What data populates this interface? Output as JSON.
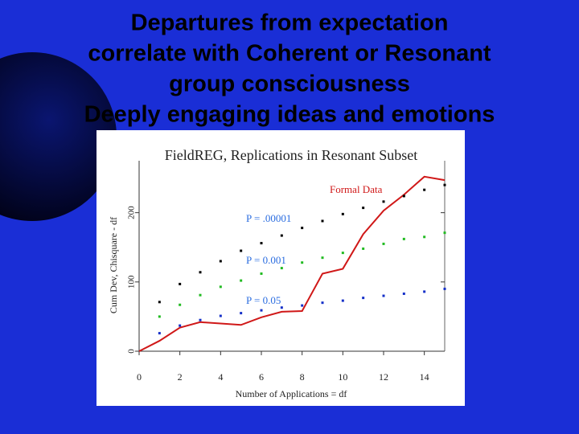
{
  "slide": {
    "title_lines": [
      "Departures from expectation",
      "correlate with Coherent or Resonant",
      "group consciousness",
      "Deeply engaging ideas and emotions"
    ]
  },
  "chart_data": {
    "type": "line",
    "title": "FieldREG, Replications in Resonant Subset",
    "x_label": "Number of Applications = df",
    "y_label": "Cum Dev, Chisquare - df",
    "x": [
      0,
      1,
      2,
      3,
      4,
      5,
      6,
      7,
      8,
      9,
      10,
      11,
      12,
      13,
      14,
      15
    ],
    "xlim": [
      0,
      15
    ],
    "ylim": [
      0,
      275
    ],
    "xticks": [
      0,
      2,
      4,
      6,
      8,
      10,
      12,
      14
    ],
    "yticks": [
      0,
      100,
      200
    ],
    "series": [
      {
        "name": "Formal Data",
        "color": "#d01818",
        "style": "line",
        "values": [
          0,
          15,
          34,
          42,
          40,
          38,
          49,
          57,
          58,
          112,
          119,
          169,
          203,
          226,
          252,
          247
        ]
      },
      {
        "name": "P = .00001",
        "color": "#000000",
        "label_color": "#2b6de0",
        "style": "dots",
        "values": [
          null,
          71,
          97,
          114,
          130,
          145,
          156,
          167,
          178,
          188,
          198,
          207,
          216,
          224,
          233,
          240
        ]
      },
      {
        "name": "P = 0.001",
        "color": "#22bb22",
        "label_color": "#2b6de0",
        "style": "dots",
        "values": [
          null,
          50,
          67,
          81,
          93,
          102,
          112,
          120,
          128,
          135,
          142,
          148,
          155,
          162,
          165,
          171
        ]
      },
      {
        "name": "P = 0.05",
        "color": "#1530c8",
        "label_color": "#2b6de0",
        "style": "dots",
        "values": [
          null,
          26,
          37,
          45,
          51,
          55,
          59,
          63,
          66,
          70,
          73,
          77,
          80,
          83,
          86,
          90
        ]
      }
    ]
  }
}
